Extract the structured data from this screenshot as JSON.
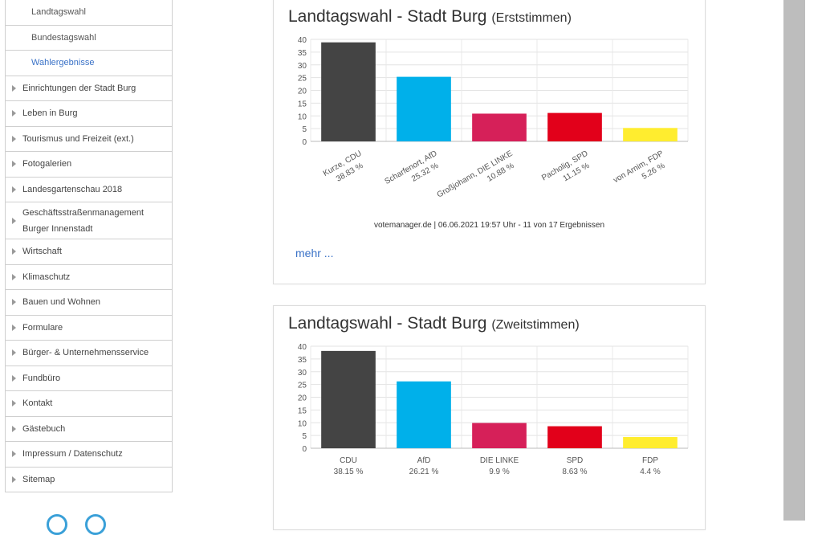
{
  "sidebar": {
    "items": [
      {
        "label": "Landtagswahl",
        "sub": true
      },
      {
        "label": "Bundestagswahl",
        "sub": true
      },
      {
        "label": "Wahlergebnisse",
        "sub": true,
        "active": true
      },
      {
        "label": "Einrichtungen der Stadt Burg"
      },
      {
        "label": "Leben in Burg"
      },
      {
        "label": "Tourismus und Freizeit (ext.)"
      },
      {
        "label": "Fotogalerien"
      },
      {
        "label": "Landesgartenschau 2018"
      },
      {
        "label": "Geschäftsstraßenmanagement Burger Innenstadt",
        "tall": true
      },
      {
        "label": "Wirtschaft"
      },
      {
        "label": "Klimaschutz"
      },
      {
        "label": "Bauen und Wohnen"
      },
      {
        "label": "Formulare"
      },
      {
        "label": "Bürger- & Unternehmensservice"
      },
      {
        "label": "Fundbüro"
      },
      {
        "label": "Kontakt"
      },
      {
        "label": "Gästebuch"
      },
      {
        "label": "Impressum / Datenschutz"
      },
      {
        "label": "Sitemap"
      }
    ]
  },
  "cards": [
    {
      "title": "Landtagswahl - Stadt Burg",
      "subtitle": "(Erststimmen)",
      "source": "votemanager.de | 06.06.2021 19:57 Uhr - 11 von 17 Ergebnissen",
      "more": "mehr ..."
    },
    {
      "title": "Landtagswahl - Stadt Burg",
      "subtitle": "(Zweitstimmen)"
    }
  ],
  "chart_data": [
    {
      "type": "bar",
      "title": "Landtagswahl - Stadt Burg (Erststimmen)",
      "categories": [
        "Kurze, CDU",
        "Scharfenort, AfD",
        "Großjohann, DIE LINKE",
        "Pacholig, SPD",
        "von Arnim, FDP"
      ],
      "value_labels": [
        "38.83 %",
        "25.32 %",
        "10.88 %",
        "11.15 %",
        "5.26 %"
      ],
      "values": [
        38.83,
        25.32,
        10.88,
        11.15,
        5.26
      ],
      "colors": [
        "#444444",
        "#00b0ea",
        "#d62059",
        "#e2001a",
        "#ffed2f"
      ],
      "ylim": [
        0,
        40
      ],
      "yticks": [
        0,
        5,
        10,
        15,
        20,
        25,
        30,
        35,
        40
      ],
      "grid": true,
      "rotated_labels": true
    },
    {
      "type": "bar",
      "title": "Landtagswahl - Stadt Burg (Zweitstimmen)",
      "categories": [
        "CDU",
        "AfD",
        "DIE LINKE",
        "SPD",
        "FDP"
      ],
      "value_labels": [
        "38.15 %",
        "26.21 %",
        "9.9 %",
        "8.63 %",
        "4.4 %"
      ],
      "values": [
        38.15,
        26.21,
        9.9,
        8.63,
        4.4
      ],
      "colors": [
        "#444444",
        "#00b0ea",
        "#d62059",
        "#e2001a",
        "#ffed2f"
      ],
      "ylim": [
        0,
        40
      ],
      "yticks": [
        0,
        5,
        10,
        15,
        20,
        25,
        30,
        35,
        40
      ],
      "grid": true,
      "rotated_labels": false
    }
  ]
}
